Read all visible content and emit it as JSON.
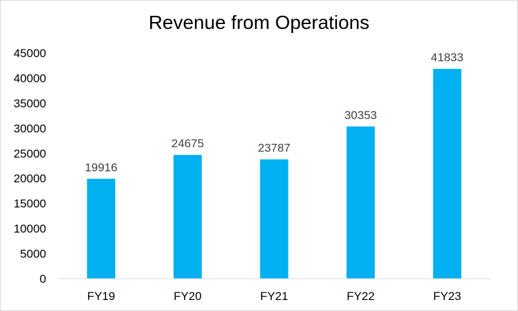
{
  "chart_data": {
    "type": "bar",
    "title": "Revenue  from Operations",
    "xlabel": "",
    "ylabel": "",
    "categories": [
      "FY19",
      "FY20",
      "FY21",
      "FY22",
      "FY23"
    ],
    "values": [
      19916,
      24675,
      23787,
      30353,
      41833
    ],
    "data_labels": [
      "19916",
      "24675",
      "23787",
      "30353",
      "41833"
    ],
    "ylim": [
      0,
      45000
    ],
    "yticks": [
      0,
      5000,
      10000,
      15000,
      20000,
      25000,
      30000,
      35000,
      40000,
      45000
    ],
    "ytick_labels": [
      "0",
      "5000",
      "10000",
      "15000",
      "20000",
      "25000",
      "30000",
      "35000",
      "40000",
      "45000"
    ],
    "grid": false,
    "legend": "none",
    "bar_color": "#00B0F0"
  }
}
